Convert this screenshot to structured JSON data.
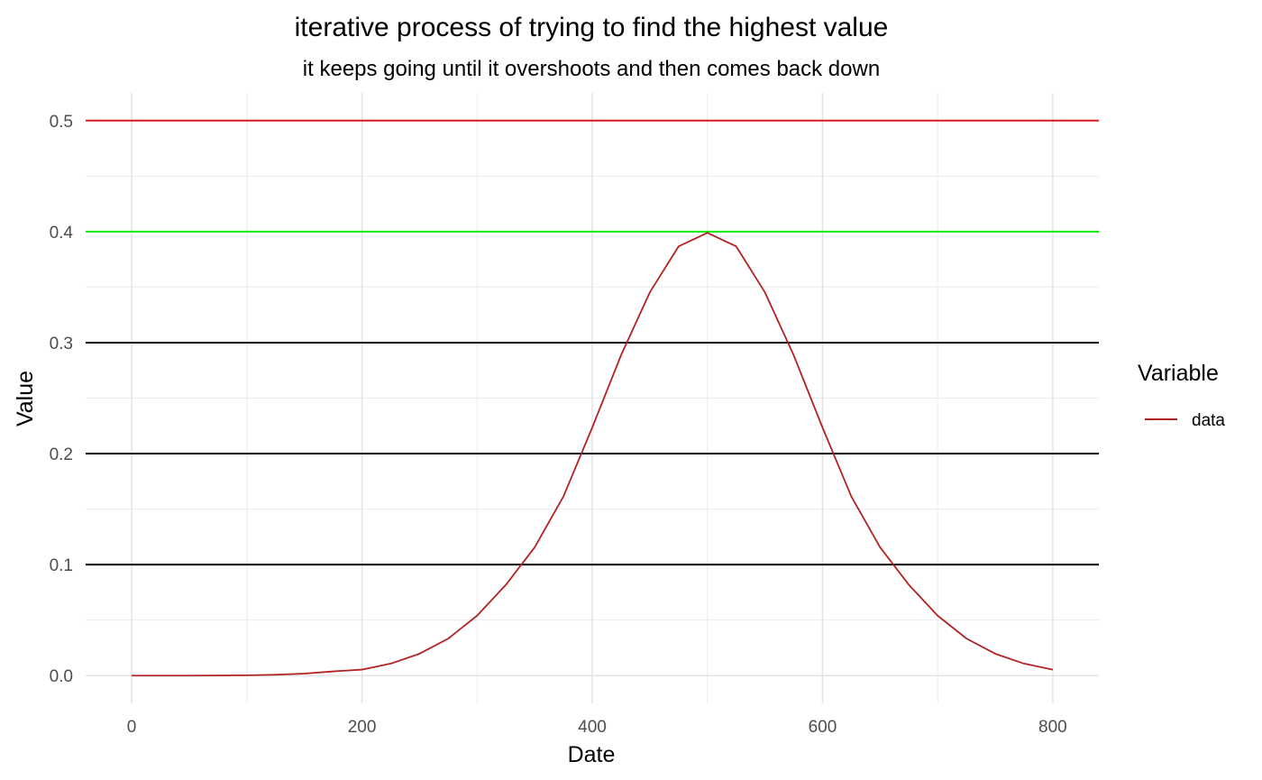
{
  "chart_data": {
    "type": "line",
    "title": "iterative process of trying to find the highest value",
    "subtitle": "it keeps going until it overshoots and then comes back down",
    "xlabel": "Date",
    "ylabel": "Value",
    "xlim": [
      -40,
      840
    ],
    "ylim": [
      -0.025,
      0.525
    ],
    "x_ticks": [
      0,
      200,
      400,
      600,
      800
    ],
    "x_tick_labels": [
      "0",
      "200",
      "400",
      "600",
      "800"
    ],
    "y_ticks": [
      0.0,
      0.1,
      0.2,
      0.3,
      0.4,
      0.5
    ],
    "y_tick_labels": [
      "0.0",
      "0.1",
      "0.2",
      "0.3",
      "0.4",
      "0.5"
    ],
    "x_minor_ticks": [
      100,
      300,
      500,
      700
    ],
    "y_minor_ticks": [
      0.05,
      0.15,
      0.25,
      0.35,
      0.45
    ],
    "grid": true,
    "legend": {
      "title": "Variable",
      "position": "right",
      "entries": [
        {
          "label": "data",
          "color": "#b22222"
        }
      ]
    },
    "series": [
      {
        "name": "data",
        "color": "#b22222",
        "x": [
          0,
          25,
          50,
          75,
          100,
          125,
          150,
          175,
          200,
          225,
          250,
          275,
          300,
          325,
          350,
          375,
          400,
          425,
          450,
          475,
          500,
          525,
          550,
          575,
          600,
          625,
          650,
          675,
          700,
          725,
          750,
          775,
          800
        ],
        "y": [
          0.0,
          0.0,
          0.0,
          0.0001,
          0.0003,
          0.0008,
          0.0018,
          0.0038,
          0.0054,
          0.0108,
          0.0197,
          0.0334,
          0.054,
          0.0818,
          0.1156,
          0.1614,
          0.2235,
          0.2886,
          0.3453,
          0.3867,
          0.3989,
          0.3867,
          0.3453,
          0.2886,
          0.2235,
          0.1614,
          0.1156,
          0.0818,
          0.054,
          0.0334,
          0.0197,
          0.0108,
          0.0054
        ]
      }
    ],
    "reference_lines": [
      {
        "y": 0.5,
        "color": "#e31a1c"
      },
      {
        "y": 0.4,
        "color": "#00ee00"
      },
      {
        "y": 0.3,
        "color": "#000000"
      },
      {
        "y": 0.2,
        "color": "#000000"
      },
      {
        "y": 0.1,
        "color": "#000000"
      }
    ]
  }
}
